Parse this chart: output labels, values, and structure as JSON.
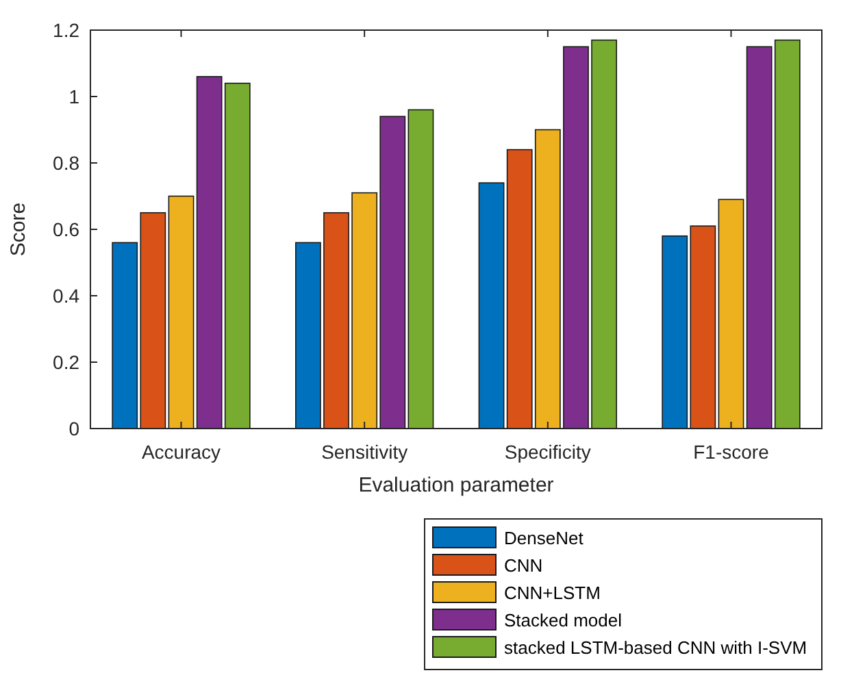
{
  "chart_data": {
    "type": "bar",
    "xlabel": "Evaluation parameter",
    "ylabel": "Score",
    "categories": [
      "Accuracy",
      "Sensitivity",
      "Specificity",
      "F1-score"
    ],
    "series": [
      {
        "name": "DenseNet",
        "color": "#0072bd",
        "values": [
          0.56,
          0.56,
          0.74,
          0.58
        ]
      },
      {
        "name": "CNN",
        "color": "#d95319",
        "values": [
          0.65,
          0.65,
          0.84,
          0.61
        ]
      },
      {
        "name": "CNN+LSTM",
        "color": "#edb120",
        "values": [
          0.7,
          0.71,
          0.9,
          0.69
        ]
      },
      {
        "name": "Stacked model",
        "color": "#7e2f8e",
        "values": [
          1.06,
          0.94,
          1.15,
          1.15
        ]
      },
      {
        "name": "stacked LSTM-based CNN with I-SVM",
        "color": "#77ac30",
        "values": [
          1.04,
          0.96,
          1.17,
          1.17
        ]
      }
    ],
    "ylim": [
      0,
      1.2
    ],
    "yticks": [
      0,
      0.2,
      0.4,
      0.6,
      0.8,
      1,
      1.2
    ],
    "grid": false,
    "legend": "bottom right"
  }
}
